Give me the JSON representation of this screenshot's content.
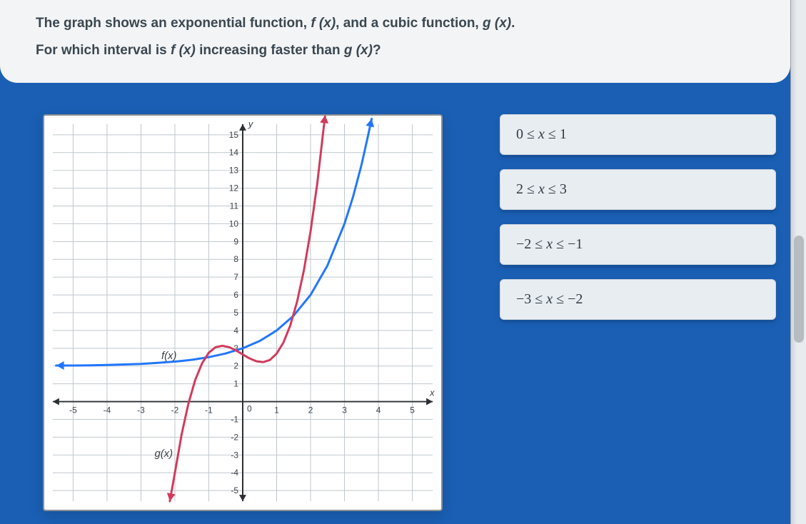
{
  "question": {
    "line1_pre": "The graph shows an exponential function, ",
    "f_of_x": "f (x)",
    "line1_mid": ", and a cubic function, ",
    "g_of_x": "g (x)",
    "line1_post": ".",
    "line2_pre": "For which interval is ",
    "line2_mid": " increasing faster than ",
    "line2_post": "?"
  },
  "chart": {
    "type": "line",
    "background_color": "#ffffff",
    "grid_color": "#bfc7cc",
    "axis_color": "#2b2f33",
    "tick_font_size": 12,
    "tick_color": "#3b4046",
    "xlim": [
      -5.6,
      5.6
    ],
    "ylim": [
      -5.6,
      15.6
    ],
    "x_ticks": [
      -5,
      -4,
      -3,
      -2,
      -1,
      0,
      1,
      2,
      3,
      4,
      5
    ],
    "y_ticks": [
      -5,
      -4,
      -3,
      -2,
      -1,
      0,
      1,
      2,
      3,
      4,
      5,
      6,
      7,
      8,
      9,
      10,
      11,
      12,
      13,
      14,
      15
    ],
    "x_axis_label": "x",
    "y_axis_label": "y",
    "series": [
      {
        "name": "f(x)",
        "color": "#2176ff",
        "line_width": 3,
        "label_pos": {
          "x": -2.4,
          "y": 2.4
        },
        "arrow_start": true,
        "arrow_end": true,
        "points": [
          [
            -5.5,
            2.03
          ],
          [
            -5,
            2.03
          ],
          [
            -4.5,
            2.04
          ],
          [
            -4,
            2.06
          ],
          [
            -3.5,
            2.09
          ],
          [
            -3,
            2.12
          ],
          [
            -2.5,
            2.18
          ],
          [
            -2,
            2.25
          ],
          [
            -1.5,
            2.35
          ],
          [
            -1,
            2.5
          ],
          [
            -0.5,
            2.71
          ],
          [
            0,
            3
          ],
          [
            0.5,
            3.41
          ],
          [
            1,
            4
          ],
          [
            1.5,
            4.83
          ],
          [
            2,
            6
          ],
          [
            2.5,
            7.66
          ],
          [
            3,
            10
          ],
          [
            3.25,
            11.5
          ],
          [
            3.5,
            13.3
          ],
          [
            3.7,
            15.0
          ],
          [
            3.8,
            15.9
          ]
        ]
      },
      {
        "name": "g(x)",
        "color": "#d23a5b",
        "line_width": 3,
        "label_pos": {
          "x": -2.6,
          "y": -3.1
        },
        "arrow_start": true,
        "arrow_end": true,
        "points": [
          [
            -2.15,
            -5.6
          ],
          [
            -2.0,
            -4.0
          ],
          [
            -1.8,
            -1.83
          ],
          [
            -1.6,
            -0.1
          ],
          [
            -1.4,
            1.22
          ],
          [
            -1.2,
            2.15
          ],
          [
            -1.0,
            2.75
          ],
          [
            -0.8,
            3.06
          ],
          [
            -0.6,
            3.14
          ],
          [
            -0.4,
            3.06
          ],
          [
            -0.2,
            2.88
          ],
          [
            0.0,
            2.65
          ],
          [
            0.2,
            2.43
          ],
          [
            0.4,
            2.27
          ],
          [
            0.6,
            2.22
          ],
          [
            0.8,
            2.34
          ],
          [
            1.0,
            2.7
          ],
          [
            1.2,
            3.32
          ],
          [
            1.4,
            4.27
          ],
          [
            1.6,
            5.6
          ],
          [
            1.8,
            7.35
          ],
          [
            2.0,
            9.57
          ],
          [
            2.2,
            12.31
          ],
          [
            2.4,
            15.62
          ],
          [
            2.43,
            16.1
          ]
        ]
      }
    ]
  },
  "answers": [
    {
      "lhs": "0",
      "op1": "≤",
      "var": "x",
      "op2": "≤",
      "rhs": "1"
    },
    {
      "lhs": "2",
      "op1": "≤",
      "var": "x",
      "op2": "≤",
      "rhs": "3"
    },
    {
      "lhs": "−2",
      "op1": "≤",
      "var": "x",
      "op2": "≤",
      "rhs": "−1"
    },
    {
      "lhs": "−3",
      "op1": "≤",
      "var": "x",
      "op2": "≤",
      "rhs": "−2"
    }
  ],
  "colors": {
    "page_bg": "#1a5fb4",
    "card_bg": "#f3f4f6",
    "answer_bg": "#e8edf1"
  }
}
